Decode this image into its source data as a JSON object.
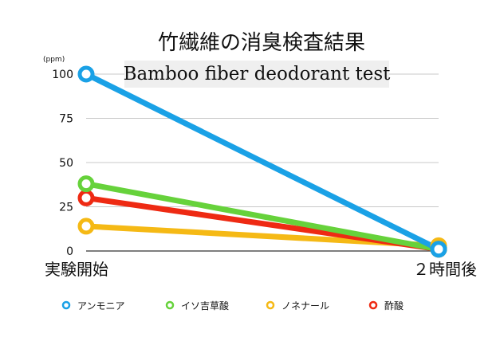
{
  "chart_data": {
    "type": "line",
    "title": "竹繊維の消臭検査結果",
    "subtitle": "Bamboo fiber deodorant test",
    "ylabel_unit": "(ppm)",
    "categories": [
      "実験開始",
      "２時間後"
    ],
    "ylim": [
      0,
      100
    ],
    "yticks": [
      "0",
      "25",
      "50",
      "75",
      "100"
    ],
    "grid": true,
    "legend_position": "bottom",
    "series": [
      {
        "name": "アンモニア",
        "color": "#1aa1e6",
        "values": [
          100,
          1
        ]
      },
      {
        "name": "イソ吉草酸",
        "color": "#66d23b",
        "values": [
          38,
          1
        ]
      },
      {
        "name": "ノネナール",
        "color": "#f5b915",
        "values": [
          14,
          3
        ]
      },
      {
        "name": "酢酸",
        "color": "#ee2a13",
        "values": [
          30,
          1
        ]
      }
    ]
  }
}
